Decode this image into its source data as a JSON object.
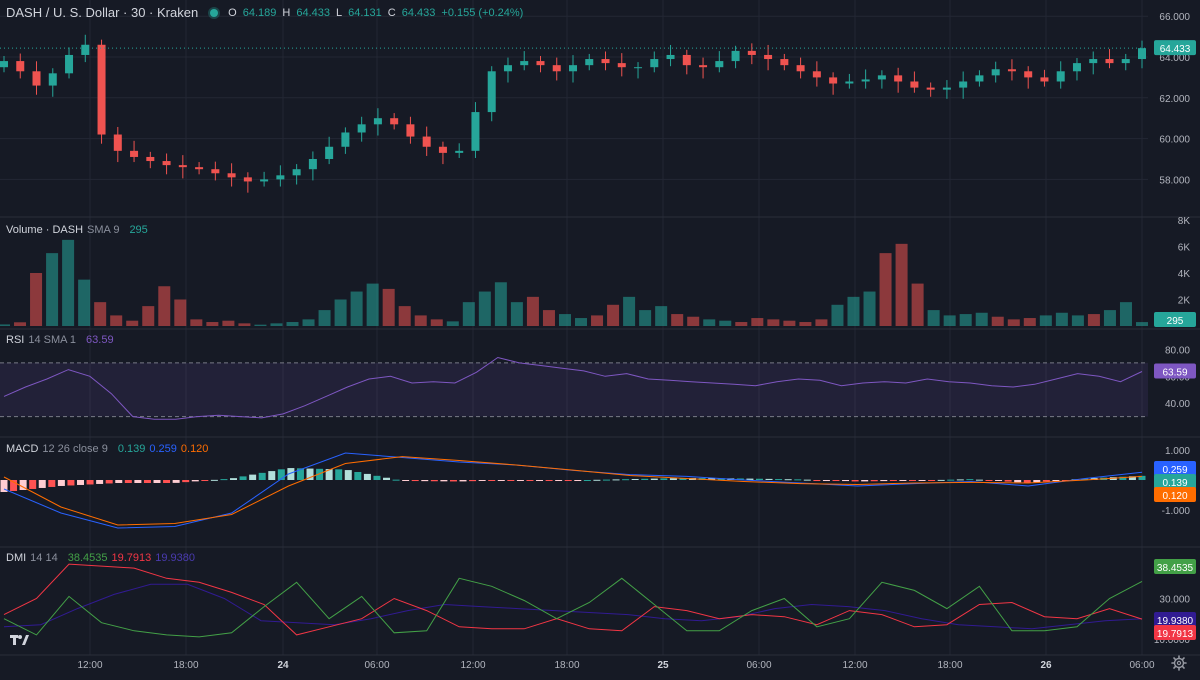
{
  "header": {
    "title": "DASH / U. S. Dollar · 30 · Kraken",
    "ohlc": [
      {
        "label": "O",
        "value": "64.189"
      },
      {
        "label": "H",
        "value": "64.433"
      },
      {
        "label": "L",
        "value": "64.131"
      },
      {
        "label": "C",
        "value": "64.433"
      }
    ],
    "change": "+0.155 (+0.24%)"
  },
  "price_pane": {
    "axis_ticks": [
      "66.000",
      "64.000",
      "62.000",
      "60.000",
      "58.000"
    ],
    "last_price": "64.433"
  },
  "volume_pane": {
    "name": "Volume · DASH",
    "params": "SMA 9",
    "value": "295",
    "axis_ticks": [
      "8K",
      "6K",
      "4K",
      "2K"
    ],
    "badge": "295"
  },
  "rsi_pane": {
    "name": "RSI",
    "params": "14 SMA 1",
    "value": "63.59",
    "axis_ticks": [
      "80.00",
      "60.00",
      "40.00"
    ],
    "badge": "63.59"
  },
  "macd_pane": {
    "name": "MACD",
    "params": "12 26 close 9",
    "hist": "0.139",
    "macd": "0.259",
    "signal": "0.120",
    "axis_ticks": [
      "1.000",
      "-1.000"
    ],
    "badges": {
      "macd": "0.259",
      "hist": "0.139",
      "signal": "0.120"
    }
  },
  "dmi_pane": {
    "name": "DMI",
    "params": "14 14",
    "plus_di": "38.4535",
    "minus_di": "19.7913",
    "adx": "19.9380",
    "axis_ticks": [
      "30.000",
      "10.0000"
    ],
    "badges": {
      "plus": "38.4535",
      "adx": "19.9380",
      "minus": "19.7913"
    }
  },
  "time_axis": [
    "12:00",
    "18:00",
    "24",
    "06:00",
    "12:00",
    "18:00",
    "25",
    "06:00",
    "12:00",
    "18:00",
    "26",
    "06:00"
  ],
  "colors": {
    "background": "#161a25",
    "up": "#26a69a",
    "down": "#ef5350",
    "rsi": "#7e57c2",
    "macd_line": "#2962ff",
    "signal_line": "#ff6d00",
    "plus_di": "#43a047",
    "minus_di": "#f23645",
    "adx": "#311b92"
  },
  "icons": {
    "logo": "tradingview-logo-icon",
    "settings": "gear-icon",
    "status": "market-open-dot-icon"
  },
  "chart_data": {
    "type": "line",
    "series": [
      {
        "name": "DASH / U. S. Dollar",
        "values": [
          63.8,
          63.3,
          62.6,
          63.2,
          64.1,
          64.6,
          60.2,
          59.4,
          59.1,
          58.9,
          58.7,
          58.6,
          58.5,
          58.3,
          58.1,
          57.9,
          58.0,
          58.2,
          58.5,
          59.0,
          59.6,
          60.3,
          60.7,
          61.0,
          60.7,
          60.1,
          59.6,
          59.3,
          59.4,
          61.3,
          63.3,
          63.6,
          63.8,
          63.6,
          63.3,
          63.6,
          63.9,
          63.7,
          63.5,
          63.5,
          63.9,
          64.1,
          63.6,
          63.5,
          63.8,
          64.3,
          64.1,
          63.9,
          63.6,
          63.3,
          63.0,
          62.7,
          62.8,
          62.9,
          63.1,
          62.8,
          62.5,
          62.4,
          62.5,
          62.8,
          63.1,
          63.4,
          63.3,
          63.0,
          62.8,
          63.3,
          63.7,
          63.9,
          63.7,
          63.9,
          64.433
        ]
      },
      {
        "name": "RSI",
        "values": [
          45,
          52,
          58,
          65,
          60,
          47,
          30,
          28,
          28,
          30,
          31,
          30,
          29,
          32,
          38,
          45,
          52,
          58,
          60,
          55,
          56,
          55,
          63,
          74,
          70,
          68,
          66,
          64,
          60,
          62,
          58,
          57,
          56,
          55,
          54,
          53,
          56,
          58,
          57,
          53,
          55,
          56,
          55,
          58,
          56,
          55,
          53,
          52,
          54,
          58,
          62,
          60,
          56,
          63.59
        ]
      },
      {
        "name": "MACD",
        "values": [
          -0.3,
          -1.1,
          -1.6,
          -1.55,
          -1.1,
          0.2,
          0.9,
          0.75,
          0.6,
          0.5,
          0.32,
          0.18,
          0.12,
          0.0,
          -0.1,
          -0.2,
          -0.12,
          -0.05,
          -0.2,
          0.05,
          0.259
        ]
      },
      {
        "name": "Signal",
        "values": [
          0.1,
          -0.9,
          -1.5,
          -1.45,
          -1.15,
          -0.2,
          0.55,
          0.78,
          0.65,
          0.5,
          0.33,
          0.15,
          0.05,
          -0.05,
          -0.12,
          -0.15,
          -0.1,
          -0.08,
          -0.1,
          0.0,
          0.12
        ]
      },
      {
        "name": "+DI",
        "values": [
          20,
          12,
          31,
          18,
          14,
          12,
          11,
          13,
          26,
          38,
          20,
          31,
          13,
          14,
          40,
          36,
          29,
          20,
          28,
          40,
          27,
          14,
          14,
          24,
          30,
          16,
          20,
          38,
          34,
          25,
          36,
          14,
          14,
          16,
          30,
          38.4535
        ]
      },
      {
        "name": "-DI",
        "values": [
          22,
          30,
          47,
          46,
          45,
          40,
          38,
          33,
          27,
          12,
          16,
          20,
          30,
          24,
          16,
          15,
          15,
          20,
          15,
          14,
          26,
          24,
          20,
          22,
          21,
          17,
          24,
          22,
          16,
          17,
          27,
          28,
          21,
          20,
          25,
          19.7913
        ]
      },
      {
        "name": "ADX",
        "values": [
          16,
          17,
          25,
          32,
          37,
          37,
          30,
          19,
          18,
          17,
          20,
          24,
          27,
          26,
          25,
          24,
          23,
          22,
          20,
          19,
          21,
          25,
          27,
          26,
          24,
          20,
          17,
          16,
          15,
          17,
          19,
          19.938
        ]
      }
    ],
    "volume": [
      120,
      280,
      4000,
      5500,
      6500,
      3500,
      1800,
      800,
      400,
      1500,
      3000,
      2000,
      500,
      300,
      400,
      200,
      100,
      200,
      300,
      500,
      1200,
      2000,
      2600,
      3200,
      2800,
      1500,
      800,
      500,
      350,
      1800,
      2600,
      3300,
      1800,
      2200,
      1200,
      900,
      600,
      800,
      1600,
      2200,
      1200,
      1500,
      900,
      700,
      500,
      400,
      300,
      600,
      500,
      400,
      300,
      500,
      1600,
      2200,
      2600,
      5500,
      6200,
      3200,
      1200,
      800,
      900,
      1000,
      700,
      500,
      600,
      800,
      1000,
      800,
      900,
      1200,
      1800,
      295
    ],
    "price_range": [
      56.5,
      66.5
    ],
    "volume_range": [
      0,
      8000
    ],
    "rsi_range": [
      20,
      90
    ],
    "macd_range": [
      -2.0,
      1.2
    ],
    "dmi_range": [
      5,
      52
    ]
  }
}
